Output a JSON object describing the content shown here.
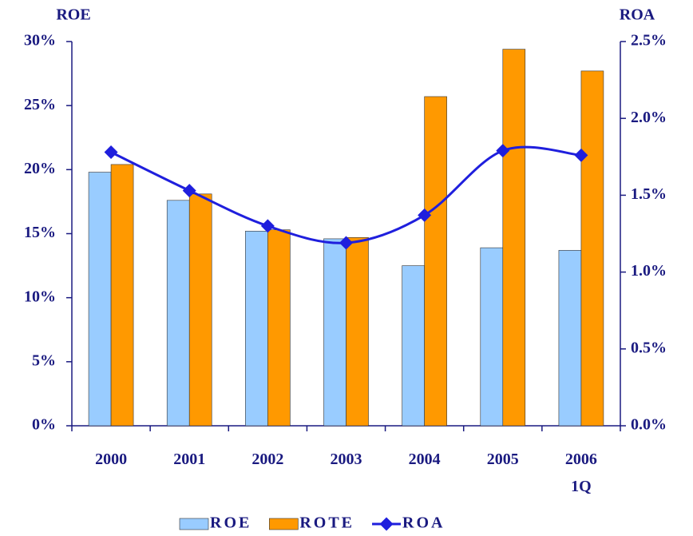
{
  "chart_data": {
    "type": "bar_line",
    "y_label": "ROE",
    "y2_label": "ROA",
    "categories": [
      "2000",
      "2001",
      "2002",
      "2003",
      "2004",
      "2005",
      "2006\n1Q"
    ],
    "series": [
      {
        "name": "ROE",
        "type": "bar",
        "color": "#99ccff",
        "values": [
          19.8,
          17.6,
          15.2,
          14.6,
          12.5,
          13.9,
          13.7
        ]
      },
      {
        "name": "ROTE",
        "type": "bar",
        "color": "#ff9900",
        "values": [
          20.4,
          18.1,
          15.3,
          14.7,
          25.7,
          29.4,
          27.7
        ]
      },
      {
        "name": "ROA",
        "type": "line",
        "axis": "y2",
        "color": "#1f1fdd",
        "values": [
          1.78,
          1.53,
          1.3,
          1.19,
          1.37,
          1.79,
          1.76
        ]
      }
    ],
    "ylim": [
      0,
      30
    ],
    "yticks": [
      {
        "value": 0,
        "label": "0%"
      },
      {
        "value": 5,
        "label": "5%"
      },
      {
        "value": 10,
        "label": "10%"
      },
      {
        "value": 15,
        "label": "15%"
      },
      {
        "value": 20,
        "label": "20%"
      },
      {
        "value": 25,
        "label": "25%"
      },
      {
        "value": 30,
        "label": "30%"
      }
    ],
    "y2lim": [
      0,
      2.5
    ],
    "y2ticks": [
      {
        "value": 0,
        "label": "0.0%"
      },
      {
        "value": 0.5,
        "label": "0.5%"
      },
      {
        "value": 1,
        "label": "1.0%"
      },
      {
        "value": 1.5,
        "label": "1.5%"
      },
      {
        "value": 2,
        "label": "2.0%"
      },
      {
        "value": 2.5,
        "label": "2.5%"
      }
    ],
    "legend": "bottom",
    "grid": false
  }
}
